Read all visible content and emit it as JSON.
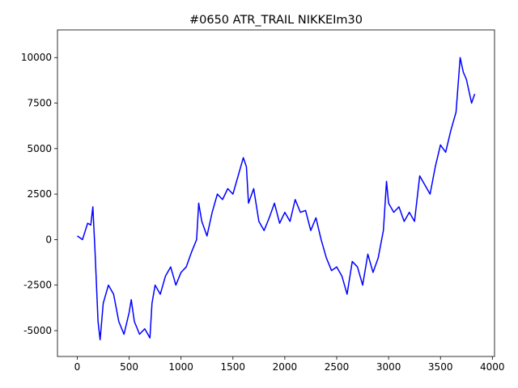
{
  "chart_data": {
    "type": "line",
    "title": "#0650 ATR_TRAIL NIKKEIm30",
    "x": [
      0,
      50,
      100,
      130,
      150,
      170,
      200,
      220,
      250,
      300,
      350,
      400,
      450,
      500,
      520,
      550,
      600,
      650,
      700,
      720,
      750,
      800,
      850,
      900,
      950,
      1000,
      1050,
      1100,
      1150,
      1170,
      1200,
      1250,
      1300,
      1350,
      1400,
      1450,
      1500,
      1550,
      1600,
      1630,
      1650,
      1700,
      1750,
      1800,
      1850,
      1900,
      1950,
      2000,
      2050,
      2100,
      2150,
      2200,
      2250,
      2300,
      2350,
      2400,
      2450,
      2500,
      2550,
      2600,
      2650,
      2700,
      2750,
      2800,
      2850,
      2900,
      2950,
      2980,
      3000,
      3050,
      3100,
      3150,
      3200,
      3250,
      3300,
      3350,
      3400,
      3450,
      3500,
      3550,
      3600,
      3650,
      3690,
      3720,
      3750,
      3800,
      3830
    ],
    "series": [
      {
        "color": "#0000ff",
        "values": [
          200,
          0,
          900,
          800,
          1800,
          -500,
          -4500,
          -5500,
          -3500,
          -2500,
          -3000,
          -4500,
          -5200,
          -4000,
          -3300,
          -4500,
          -5200,
          -4900,
          -5400,
          -3500,
          -2500,
          -3000,
          -2000,
          -1500,
          -2500,
          -1800,
          -1500,
          -700,
          0,
          2000,
          1000,
          200,
          1500,
          2500,
          2200,
          2800,
          2500,
          3500,
          4500,
          4000,
          2000,
          2800,
          1000,
          500,
          1200,
          2000,
          900,
          1500,
          1000,
          2200,
          1500,
          1600,
          500,
          1200,
          0,
          -1000,
          -1700,
          -1500,
          -2000,
          -3000,
          -1200,
          -1500,
          -2500,
          -800,
          -1800,
          -1000,
          500,
          3200,
          2000,
          1500,
          1800,
          1000,
          1500,
          1000,
          3500,
          3000,
          2500,
          4000,
          5200,
          4800,
          6000,
          7000,
          10000,
          9200,
          8800,
          7500,
          8000
        ]
      }
    ],
    "xlim": [
      -191,
      4021
    ],
    "ylim": [
      -6420,
      11520
    ],
    "xticks": [
      0,
      500,
      1000,
      1500,
      2000,
      2500,
      3000,
      3500,
      4000
    ],
    "yticks": [
      -5000,
      -2500,
      0,
      2500,
      5000,
      7500,
      10000
    ]
  }
}
